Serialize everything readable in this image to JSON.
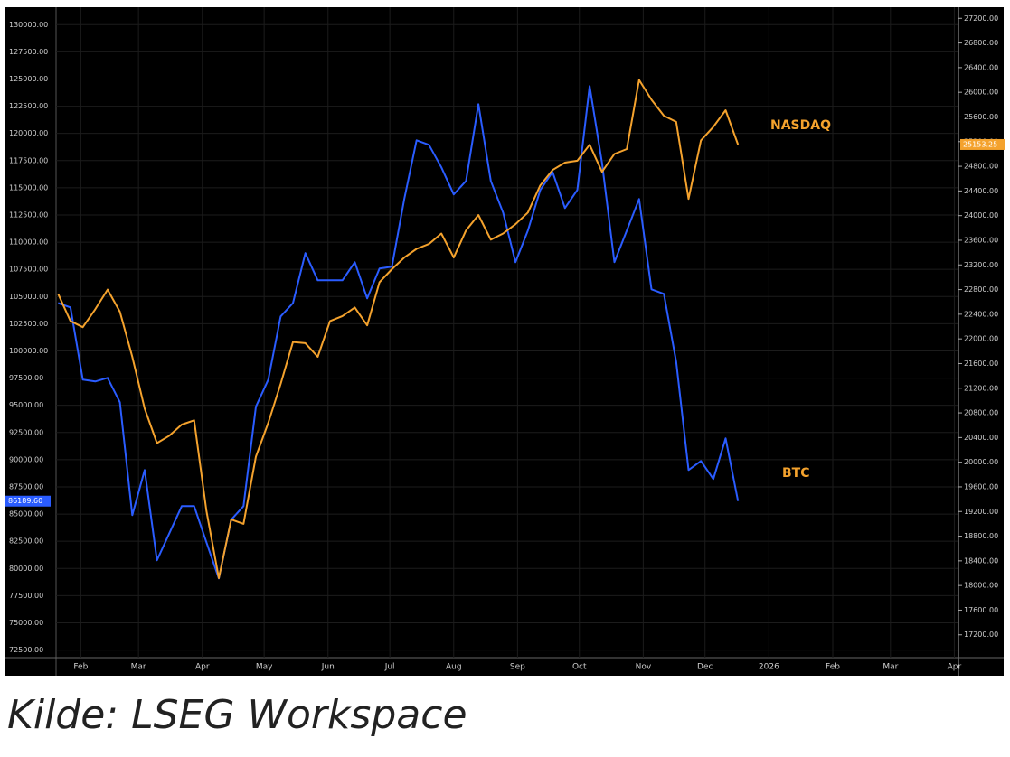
{
  "caption": "Kilde: LSEG Workspace",
  "chart_data": {
    "type": "line",
    "grid": true,
    "x": [
      21,
      27,
      33,
      39,
      45,
      51,
      57,
      63,
      69,
      75,
      81,
      87,
      93,
      99,
      105,
      111,
      117,
      123,
      129,
      135,
      141,
      147,
      153,
      159,
      165,
      171,
      177,
      183,
      189,
      195,
      201,
      207,
      213,
      219,
      225,
      231,
      237,
      243,
      249,
      255,
      261,
      267,
      273,
      279,
      285,
      291,
      297,
      303,
      309,
      315,
      321,
      327,
      333,
      339,
      345,
      351
    ],
    "xlim": [
      20,
      458
    ],
    "xticks": [
      {
        "value": 32,
        "label": "Feb"
      },
      {
        "value": 60,
        "label": "Mar"
      },
      {
        "value": 91,
        "label": "Apr"
      },
      {
        "value": 121,
        "label": "May"
      },
      {
        "value": 152,
        "label": "Jun"
      },
      {
        "value": 182,
        "label": "Jul"
      },
      {
        "value": 213,
        "label": "Aug"
      },
      {
        "value": 244,
        "label": "Sep"
      },
      {
        "value": 274,
        "label": "Oct"
      },
      {
        "value": 305,
        "label": "Nov"
      },
      {
        "value": 335,
        "label": "Dec"
      },
      {
        "value": 366,
        "label": "2026"
      },
      {
        "value": 397,
        "label": "Feb"
      },
      {
        "value": 425,
        "label": "Mar"
      },
      {
        "value": 456,
        "label": "Apr"
      }
    ],
    "ylim": [
      71800,
      131600
    ],
    "yticks": [
      {
        "value": 72500,
        "label": "72500.00"
      },
      {
        "value": 75000,
        "label": "75000.00"
      },
      {
        "value": 77500,
        "label": "77500.00"
      },
      {
        "value": 80000,
        "label": "80000.00"
      },
      {
        "value": 82500,
        "label": "82500.00"
      },
      {
        "value": 85000,
        "label": "85000.00"
      },
      {
        "value": 87500,
        "label": "87500.00"
      },
      {
        "value": 90000,
        "label": "90000.00"
      },
      {
        "value": 92500,
        "label": "92500.00"
      },
      {
        "value": 95000,
        "label": "95000.00"
      },
      {
        "value": 97500,
        "label": "97500.00"
      },
      {
        "value": 100000,
        "label": "100000.00"
      },
      {
        "value": 102500,
        "label": "102500.00"
      },
      {
        "value": 105000,
        "label": "105000.00"
      },
      {
        "value": 107500,
        "label": "107500.00"
      },
      {
        "value": 110000,
        "label": "110000.00"
      },
      {
        "value": 112500,
        "label": "112500.00"
      },
      {
        "value": 115000,
        "label": "115000.00"
      },
      {
        "value": 117500,
        "label": "117500.00"
      },
      {
        "value": 120000,
        "label": "120000.00"
      },
      {
        "value": 122500,
        "label": "122500.00"
      },
      {
        "value": 125000,
        "label": "125000.00"
      },
      {
        "value": 127500,
        "label": "127500.00"
      },
      {
        "value": 130000,
        "label": "130000.00"
      }
    ],
    "y2lim": [
      16830,
      27380
    ],
    "y2ticks": [
      {
        "value": 17200,
        "label": "17200.00"
      },
      {
        "value": 17600,
        "label": "17600.00"
      },
      {
        "value": 18000,
        "label": "18000.00"
      },
      {
        "value": 18400,
        "label": "18400.00"
      },
      {
        "value": 18800,
        "label": "18800.00"
      },
      {
        "value": 19200,
        "label": "19200.00"
      },
      {
        "value": 19600,
        "label": "19600.00"
      },
      {
        "value": 20000,
        "label": "20000.00"
      },
      {
        "value": 20400,
        "label": "20400.00"
      },
      {
        "value": 20800,
        "label": "20800.00"
      },
      {
        "value": 21200,
        "label": "21200.00"
      },
      {
        "value": 21600,
        "label": "21600.00"
      },
      {
        "value": 22000,
        "label": "22000.00"
      },
      {
        "value": 22400,
        "label": "22400.00"
      },
      {
        "value": 22800,
        "label": "22800.00"
      },
      {
        "value": 23200,
        "label": "23200.00"
      },
      {
        "value": 23600,
        "label": "23600.00"
      },
      {
        "value": 24000,
        "label": "24000.00"
      },
      {
        "value": 24400,
        "label": "24400.00"
      },
      {
        "value": 24800,
        "label": "24800.00"
      },
      {
        "value": 25200,
        "label": "25200.00"
      },
      {
        "value": 25600,
        "label": "25600.00"
      },
      {
        "value": 26000,
        "label": "26000.00"
      },
      {
        "value": 26400,
        "label": "26400.00"
      },
      {
        "value": 26800,
        "label": "26800.00"
      },
      {
        "value": 27200,
        "label": "27200.00"
      }
    ],
    "series": [
      {
        "name": "BTC",
        "color": "#2a5cff",
        "axis": "y",
        "last_label": "86189.60",
        "values": [
          104400,
          104000,
          97360,
          97190,
          97520,
          95280,
          84900,
          89050,
          80750,
          83240,
          85730,
          85730,
          82410,
          79080,
          84480,
          85730,
          94870,
          97360,
          103170,
          104400,
          108990,
          106490,
          106490,
          106490,
          108150,
          104830,
          107570,
          107740,
          113970,
          119370,
          118950,
          116880,
          114390,
          115630,
          122690,
          115630,
          112720,
          108150,
          111060,
          114800,
          116460,
          113140,
          114800,
          124350,
          117290,
          108150,
          111060,
          113970,
          105660,
          105250,
          99020,
          89050,
          89880,
          88220,
          91960,
          86189.6
        ]
      },
      {
        "name": "NASDAQ",
        "color": "#f4a22d",
        "axis": "y2",
        "last_label": "25153.25",
        "values": [
          22730,
          22290,
          22190,
          22480,
          22800,
          22440,
          21710,
          20870,
          20310,
          20430,
          20610,
          20680,
          19210,
          18120,
          19070,
          19000,
          20090,
          20640,
          21270,
          21950,
          21930,
          21710,
          22290,
          22370,
          22510,
          22220,
          22920,
          23130,
          23320,
          23460,
          23540,
          23710,
          23320,
          23760,
          24010,
          23610,
          23710,
          23860,
          24050,
          24490,
          24740,
          24860,
          24890,
          25150,
          24710,
          25000,
          25080,
          26200,
          25880,
          25620,
          25520,
          24270,
          25220,
          25440,
          25710,
          25153.25
        ]
      }
    ]
  }
}
